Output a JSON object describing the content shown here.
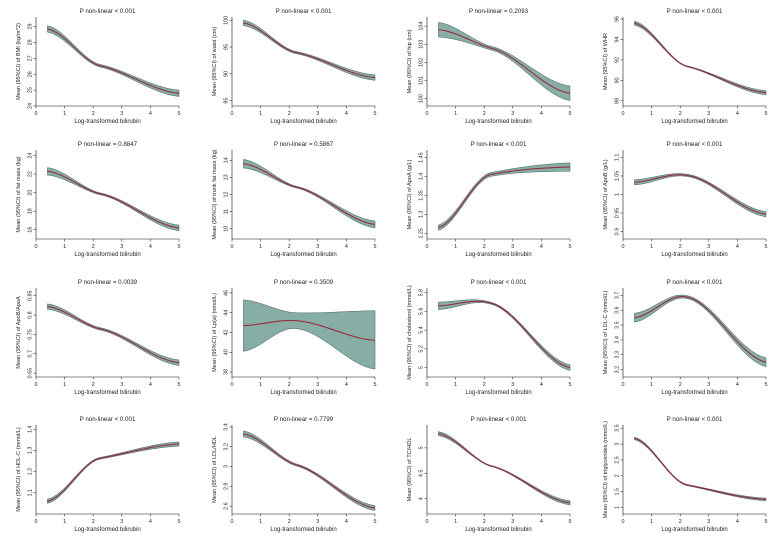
{
  "colors": {
    "ci_band": "#86aea7",
    "ci_edge": "#3f5f5a",
    "mean_line": "#9a2b3e",
    "axis": "#111111",
    "text": "#222222",
    "background": "#ffffff"
  },
  "chart_data": [
    {
      "type": "line",
      "title": "P non-linear < 0.001",
      "xlabel": "Log-transformed bilirubin",
      "ylabel": "Mean (95%CI) of BMI (kg/m^2)",
      "xlim": [
        0,
        5
      ],
      "ylim": [
        24,
        29.6
      ],
      "xticks": [
        0,
        1,
        2,
        3,
        4,
        5
      ],
      "yticks": [
        24,
        25,
        26,
        27,
        28,
        29
      ],
      "x": [
        0.4,
        2.2,
        5.0
      ],
      "y": [
        28.85,
        26.55,
        24.8
      ],
      "lower": [
        28.65,
        26.47,
        24.6
      ],
      "upper": [
        29.05,
        26.63,
        25.0
      ]
    },
    {
      "type": "line",
      "title": "P non-linear < 0.001",
      "xlabel": "Log-transformed bilirubin",
      "ylabel": "Mean (95%CI) of waist (cm)",
      "xlim": [
        0,
        5
      ],
      "ylim": [
        84,
        100.6
      ],
      "xticks": [
        0,
        1,
        2,
        3,
        4,
        5
      ],
      "yticks": [
        85,
        90,
        95,
        100
      ],
      "x": [
        0.4,
        2.2,
        5.0
      ],
      "y": [
        99.5,
        94.0,
        89.3
      ],
      "lower": [
        99.0,
        93.8,
        88.8
      ],
      "upper": [
        100.0,
        94.2,
        89.8
      ]
    },
    {
      "type": "line",
      "title": "P non-linear = 0.2093",
      "xlabel": "Log-transformed bilirubin",
      "ylabel": "Mean (95%CI) of hip (cm)",
      "xlim": [
        0,
        5
      ],
      "ylim": [
        99.6,
        104.5
      ],
      "xticks": [
        0,
        1,
        2,
        3,
        4,
        5
      ],
      "yticks": [
        100,
        101,
        102,
        103,
        104
      ],
      "x": [
        0.4,
        2.2,
        5.0
      ],
      "y": [
        103.8,
        102.8,
        100.3
      ],
      "lower": [
        103.4,
        102.7,
        99.9
      ],
      "upper": [
        104.2,
        102.9,
        100.7
      ]
    },
    {
      "type": "line",
      "title": "P non-linear < 0.001",
      "xlabel": "Log-transformed bilirubin",
      "ylabel": "Mean (95%CI) of WHR",
      "xlim": [
        0,
        5
      ],
      "ylim": [
        87.5,
        96.2
      ],
      "xticks": [
        0,
        1,
        2,
        3,
        4,
        5
      ],
      "yticks": [
        88,
        90,
        92,
        94,
        96
      ],
      "x": [
        0.4,
        2.2,
        5.0
      ],
      "y": [
        95.6,
        91.4,
        88.8
      ],
      "lower": [
        95.4,
        91.35,
        88.6
      ],
      "upper": [
        95.8,
        91.45,
        89.0
      ]
    },
    {
      "type": "line",
      "title": "P non-linear = 0.8847",
      "xlabel": "Log-transformed bilirubin",
      "ylabel": "Mean (95%CI) of fat mass (kg)",
      "xlim": [
        0,
        5
      ],
      "ylim": [
        15,
        24.6
      ],
      "xticks": [
        0,
        1,
        2,
        3,
        4,
        5
      ],
      "yticks": [
        16,
        18,
        20,
        22,
        24
      ],
      "x": [
        0.4,
        2.2,
        5.0
      ],
      "y": [
        22.3,
        19.9,
        16.2
      ],
      "lower": [
        21.9,
        19.8,
        15.9
      ],
      "upper": [
        22.7,
        20.0,
        16.5
      ]
    },
    {
      "type": "line",
      "title": "P non-linear = 0.5867",
      "xlabel": "Log-transformed bilirubin",
      "ylabel": "Mean (95%CI) of trunk fat mass (kg)",
      "xlim": [
        0,
        5
      ],
      "ylim": [
        9.4,
        14.6
      ],
      "xticks": [
        0,
        1,
        2,
        3,
        4,
        5
      ],
      "yticks": [
        10,
        11,
        12,
        13,
        14
      ],
      "x": [
        0.4,
        2.2,
        5.0
      ],
      "y": [
        13.8,
        12.45,
        10.25
      ],
      "lower": [
        13.55,
        12.4,
        10.05
      ],
      "upper": [
        14.05,
        12.5,
        10.45
      ]
    },
    {
      "type": "line",
      "title": "P non-linear < 0.001",
      "xlabel": "Log-transformed bilirubin",
      "ylabel": "Mean (95%CI) of ApoA (g/L)",
      "xlim": [
        0,
        5
      ],
      "ylim": [
        1.235,
        1.47
      ],
      "xticks": [
        0,
        1,
        2,
        3,
        4,
        5
      ],
      "yticks": [
        1.25,
        1.3,
        1.35,
        1.4,
        1.45
      ],
      "x": [
        0.4,
        2.2,
        5.0
      ],
      "y": [
        1.265,
        1.405,
        1.425
      ],
      "lower": [
        1.258,
        1.4,
        1.414
      ],
      "upper": [
        1.272,
        1.41,
        1.436
      ]
    },
    {
      "type": "line",
      "title": "P non-linear < 0.001",
      "xlabel": "Log-transformed bilirubin",
      "ylabel": "Mean (95%CI) of ApoB (g/L)",
      "xlim": [
        0,
        5
      ],
      "ylim": [
        0.88,
        1.12
      ],
      "xticks": [
        0,
        1,
        2,
        3,
        4,
        5
      ],
      "yticks": [
        0.9,
        0.95,
        1,
        1.05,
        1.1
      ],
      "x": [
        0.4,
        2.2,
        5.0
      ],
      "y": [
        1.033,
        1.052,
        0.947
      ],
      "lower": [
        1.026,
        1.049,
        0.94
      ],
      "upper": [
        1.04,
        1.055,
        0.954
      ]
    },
    {
      "type": "line",
      "title": "P non-linear = 0.0039",
      "xlabel": "Log-transformed bilirubin",
      "ylabel": "Mean (95%CI) of ApoB/ApoA",
      "xlim": [
        0,
        5
      ],
      "ylim": [
        0.64,
        0.87
      ],
      "xticks": [
        0,
        1,
        2,
        3,
        4,
        5
      ],
      "yticks": [
        0.65,
        0.7,
        0.75,
        0.8,
        0.85
      ],
      "x": [
        0.4,
        2.2,
        5.0
      ],
      "y": [
        0.822,
        0.765,
        0.677
      ],
      "lower": [
        0.815,
        0.762,
        0.67
      ],
      "upper": [
        0.829,
        0.768,
        0.684
      ]
    },
    {
      "type": "line",
      "title": "P non-linear = 0.3509",
      "xlabel": "Log-transformed bilirubin",
      "ylabel": "Mean (95%CI) of Lp(a) (nmol/L)",
      "xlim": [
        0,
        5
      ],
      "ylim": [
        37.5,
        46.5
      ],
      "xticks": [
        0,
        1,
        2,
        3,
        4,
        5
      ],
      "yticks": [
        38,
        40,
        42,
        44,
        46
      ],
      "x": [
        0.4,
        2.2,
        5.0
      ],
      "y": [
        42.7,
        43.2,
        41.2
      ],
      "lower": [
        40.1,
        42.4,
        38.3
      ],
      "upper": [
        45.3,
        44.0,
        44.2
      ]
    },
    {
      "type": "line",
      "title": "P non-linear < 0.001",
      "xlabel": "Log-transformed bilirubin",
      "ylabel": "Mean (95%CI) of cholesterol (mmol/L)",
      "xlim": [
        0,
        5
      ],
      "ylim": [
        4.9,
        5.85
      ],
      "xticks": [
        0,
        1,
        2,
        3,
        4,
        5
      ],
      "yticks": [
        5,
        5.2,
        5.4,
        5.6,
        5.8
      ],
      "x": [
        0.4,
        2.2,
        5.0
      ],
      "y": [
        5.66,
        5.69,
        5.0
      ],
      "lower": [
        5.62,
        5.68,
        4.97
      ],
      "upper": [
        5.7,
        5.7,
        5.03
      ]
    },
    {
      "type": "line",
      "title": "P non-linear < 0.001",
      "xlabel": "Log-transformed bilirubin",
      "ylabel": "Mean (95%CI) of LDL-C (mmol/L)",
      "xlim": [
        0,
        5
      ],
      "ylim": [
        3.15,
        3.75
      ],
      "xticks": [
        0,
        1,
        2,
        3,
        4,
        5
      ],
      "yticks": [
        3.2,
        3.3,
        3.4,
        3.5,
        3.6,
        3.7
      ],
      "x": [
        0.4,
        2.2,
        5.0
      ],
      "y": [
        3.55,
        3.69,
        3.25
      ],
      "lower": [
        3.52,
        3.68,
        3.22
      ],
      "upper": [
        3.58,
        3.7,
        3.28
      ]
    },
    {
      "type": "line",
      "title": "P non-linear < 0.001",
      "xlabel": "Log-transformed bilirubin",
      "ylabel": "Mean (95%CI) of HDL-C (mmol/L)",
      "xlim": [
        0,
        5
      ],
      "ylim": [
        1.0,
        1.42
      ],
      "xticks": [
        0,
        1,
        2,
        3,
        4,
        5
      ],
      "yticks": [
        1.1,
        1.2,
        1.3,
        1.4
      ],
      "x": [
        0.4,
        2.2,
        5.0
      ],
      "y": [
        1.06,
        1.262,
        1.33
      ],
      "lower": [
        1.05,
        1.258,
        1.32
      ],
      "upper": [
        1.07,
        1.266,
        1.34
      ]
    },
    {
      "type": "line",
      "title": "P non-linear = 0.7799",
      "xlabel": "Log-transformed bilirubin",
      "ylabel": "Mean (95%CI) of LDL/HDL",
      "xlim": [
        0,
        5
      ],
      "ylim": [
        2.52,
        3.42
      ],
      "xticks": [
        0,
        1,
        2,
        3,
        4,
        5
      ],
      "yticks": [
        2.6,
        2.8,
        3,
        3.2,
        3.4
      ],
      "x": [
        0.4,
        2.2,
        5.0
      ],
      "y": [
        3.33,
        3.02,
        2.58
      ],
      "lower": [
        3.3,
        3.01,
        2.555
      ],
      "upper": [
        3.36,
        3.03,
        2.605
      ]
    },
    {
      "type": "line",
      "title": "P non-linear < 0.001",
      "xlabel": "Log-transformed bilirubin",
      "ylabel": "Mean (95%CI) of TC/HDL",
      "xlim": [
        0,
        5
      ],
      "ylim": [
        3.7,
        5.45
      ],
      "xticks": [
        0,
        1,
        2,
        3,
        4,
        5
      ],
      "yticks": [
        4,
        4.5,
        5
      ],
      "x": [
        0.4,
        2.2,
        5.0
      ],
      "y": [
        5.28,
        4.65,
        3.92
      ],
      "lower": [
        5.24,
        4.64,
        3.88
      ],
      "upper": [
        5.32,
        4.66,
        3.96
      ]
    },
    {
      "type": "line",
      "title": "P non-linear < 0.001",
      "xlabel": "Log-transformed bilirubin",
      "ylabel": "Mean (95%CI) of triglycerides (mmol/L)",
      "xlim": [
        0,
        5
      ],
      "ylim": [
        0.8,
        3.6
      ],
      "xticks": [
        0,
        1,
        2,
        3,
        4,
        5
      ],
      "yticks": [
        1,
        1.5,
        2,
        2.5,
        3,
        3.5
      ],
      "x": [
        0.4,
        2.2,
        5.0
      ],
      "y": [
        3.18,
        1.72,
        1.26
      ],
      "lower": [
        3.14,
        1.7,
        1.22
      ],
      "upper": [
        3.22,
        1.74,
        1.3
      ]
    }
  ]
}
